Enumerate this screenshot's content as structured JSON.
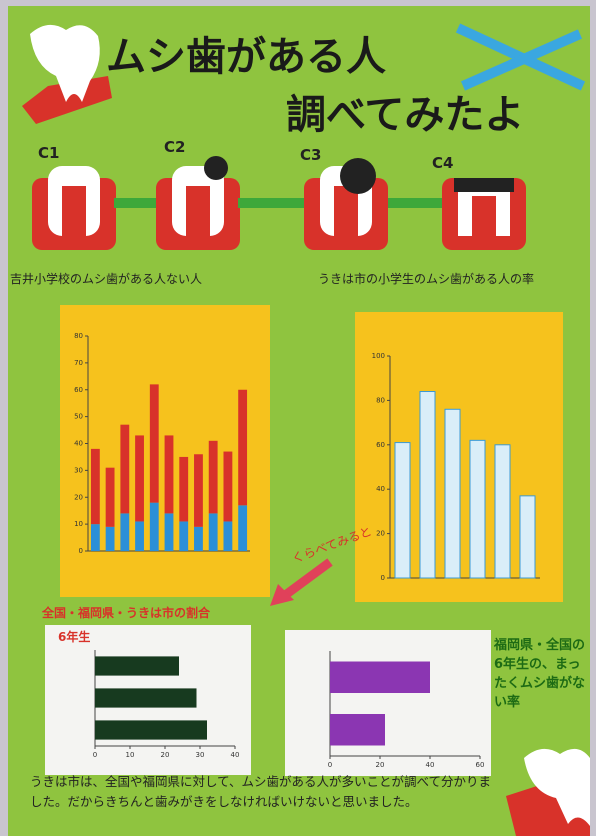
{
  "poster": {
    "title": [
      "ムシ歯がある人",
      "調べてみたよ"
    ],
    "stages": [
      "C1",
      "C2",
      "C3",
      "C4"
    ],
    "captions": [
      "吉井小学校のムシ歯がある人ない人",
      "うきは市の小学生のムシ歯がある人の率"
    ],
    "arrow_label": "くらべてみると",
    "compare_heading": "全国・福岡県・うきは市の割合",
    "grade_label": "6年生",
    "side_note": "福岡県・全国の6年生の、まったくムシ歯がない率",
    "conclusion": "うきは市は、全国や福岡県に対して、ムシ歯がある人が多いことが調べて分かりました。だからきちんと歯みがきをしなければいけないと思いました。"
  },
  "chart_data": [
    {
      "type": "bar",
      "stacked": true,
      "ylim": [
        0,
        80
      ],
      "yticks": [
        0,
        10,
        20,
        30,
        40,
        50,
        60,
        70,
        80
      ],
      "series": [
        {
          "color": "#2b8fd8",
          "values": [
            10,
            9,
            14,
            11,
            18,
            14,
            11,
            9,
            14,
            11,
            17
          ]
        },
        {
          "color": "#d8322a",
          "values": [
            28,
            22,
            33,
            32,
            44,
            29,
            24,
            27,
            27,
            26,
            43
          ]
        }
      ]
    },
    {
      "type": "bar",
      "ylim": [
        0,
        100
      ],
      "yticks": [
        0,
        20,
        40,
        60,
        80,
        100
      ],
      "series": [
        {
          "color": "#d9eef8",
          "values": [
            61,
            84,
            76,
            62,
            60,
            37
          ]
        }
      ]
    },
    {
      "type": "bar",
      "horizontal": true,
      "xlim": [
        0,
        40
      ],
      "xticks": [
        0,
        10,
        20,
        30,
        40
      ],
      "series": [
        {
          "color": "#173a1f",
          "values": [
            24,
            29,
            32
          ]
        }
      ]
    },
    {
      "type": "bar",
      "horizontal": true,
      "xlim": [
        0,
        60
      ],
      "xticks": [
        0,
        20,
        40,
        60
      ],
      "series": [
        {
          "color": "#8b36b2",
          "values": [
            40,
            22
          ]
        }
      ]
    }
  ]
}
